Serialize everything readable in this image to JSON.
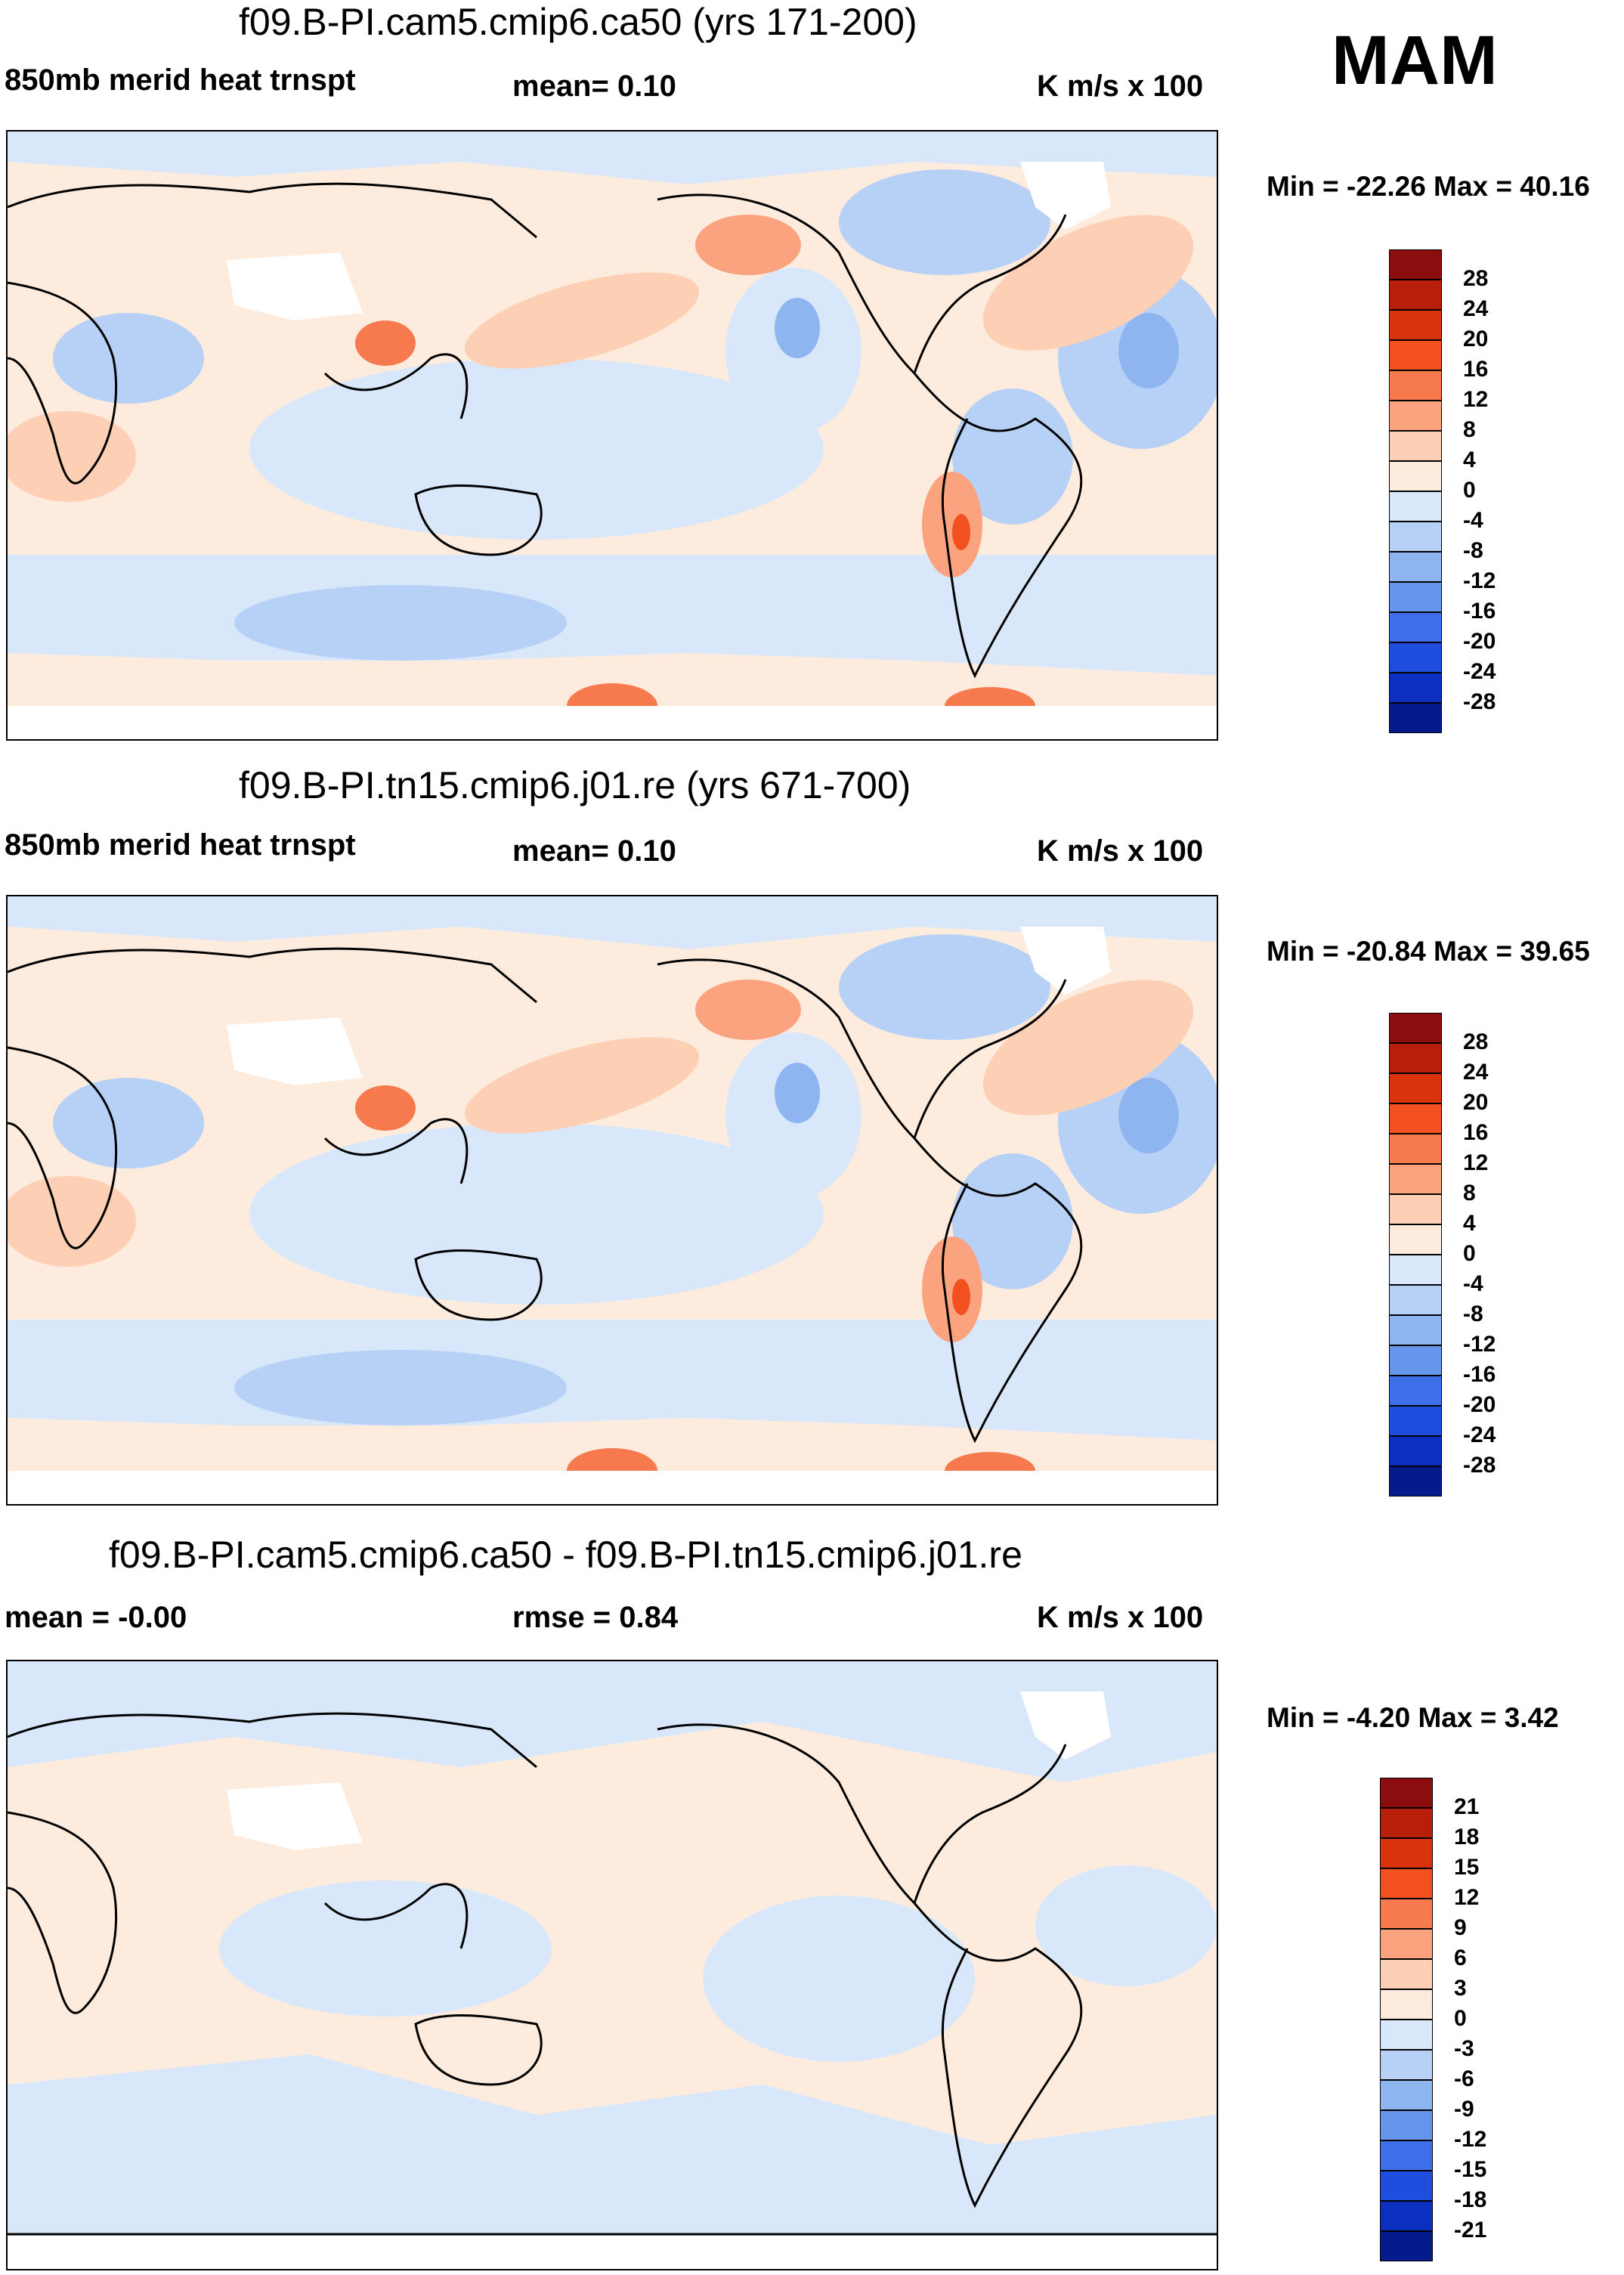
{
  "season": "MAM",
  "panels": [
    {
      "title": "f09.B-PI.cam5.cmip6.ca50 (yrs 171-200)",
      "left_label": "850mb merid heat trnspt",
      "center_label": "mean=   0.10",
      "units": "K m/s x 100",
      "minmax": "Min = -22.26 Max =  40.16",
      "colorbar": {
        "labels": [
          "28",
          "24",
          "20",
          "16",
          "12",
          "8",
          "4",
          "0",
          "-4",
          "-8",
          "-12",
          "-16",
          "-20",
          "-24",
          "-28"
        ],
        "colors": [
          "#8b0d0d",
          "#b81f0a",
          "#d8330d",
          "#f2511f",
          "#f77a4f",
          "#fba27f",
          "#fdd0b6",
          "#fdecdd",
          "#d8e8fa",
          "#b7d1f6",
          "#8fb5f1",
          "#6695ec",
          "#3f6fe8",
          "#1f4ede",
          "#0d2fc0",
          "#051b8b"
        ],
        "ticks": [
          28,
          24,
          20,
          16,
          12,
          8,
          4,
          0,
          -4,
          -8,
          -12,
          -16,
          -20,
          -24,
          -28
        ]
      }
    },
    {
      "title": "f09.B-PI.tn15.cmip6.j01.re (yrs 671-700)",
      "left_label": "850mb merid heat trnspt",
      "center_label": "mean=   0.10",
      "units": "K m/s x 100",
      "minmax": "Min = -20.84 Max =  39.65",
      "colorbar": {
        "labels": [
          "28",
          "24",
          "20",
          "16",
          "12",
          "8",
          "4",
          "0",
          "-4",
          "-8",
          "-12",
          "-16",
          "-20",
          "-24",
          "-28"
        ],
        "colors": [
          "#8b0d0d",
          "#b81f0a",
          "#d8330d",
          "#f2511f",
          "#f77a4f",
          "#fba27f",
          "#fdd0b6",
          "#fdecdd",
          "#d8e8fa",
          "#b7d1f6",
          "#8fb5f1",
          "#6695ec",
          "#3f6fe8",
          "#1f4ede",
          "#0d2fc0",
          "#051b8b"
        ],
        "ticks": [
          28,
          24,
          20,
          16,
          12,
          8,
          4,
          0,
          -4,
          -8,
          -12,
          -16,
          -20,
          -24,
          -28
        ]
      }
    },
    {
      "title": "f09.B-PI.cam5.cmip6.ca50 - f09.B-PI.tn15.cmip6.j01.re",
      "left_label": "mean =  -0.00",
      "center_label": "rmse =   0.84",
      "units": "K m/s x 100",
      "minmax": "Min =  -4.20 Max =   3.42",
      "colorbar": {
        "labels": [
          "21",
          "18",
          "15",
          "12",
          "9",
          "6",
          "3",
          "0",
          "-3",
          "-6",
          "-9",
          "-12",
          "-15",
          "-18",
          "-21"
        ],
        "colors": [
          "#8b0d0d",
          "#b81f0a",
          "#d8330d",
          "#f2511f",
          "#f77a4f",
          "#fba27f",
          "#fdd0b6",
          "#fdecdd",
          "#d8e8fa",
          "#b7d1f6",
          "#8fb5f1",
          "#6695ec",
          "#3f6fe8",
          "#1f4ede",
          "#0d2fc0",
          "#051b8b"
        ],
        "ticks": [
          21,
          18,
          15,
          12,
          9,
          6,
          3,
          0,
          -3,
          -6,
          -9,
          -12,
          -15,
          -18,
          -21
        ]
      }
    }
  ]
}
